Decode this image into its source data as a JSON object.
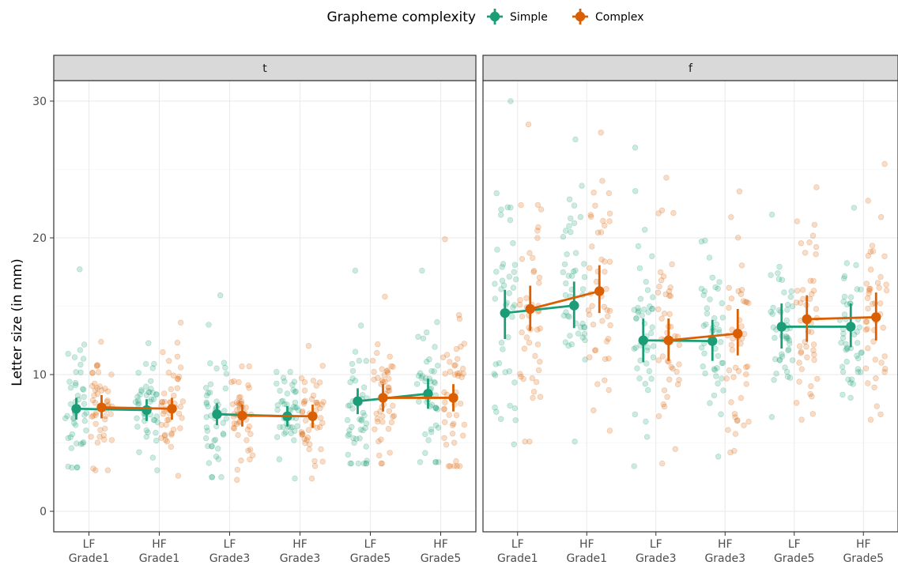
{
  "chart_data": {
    "type": "scatter",
    "ylabel": "Letter size (in mm)",
    "ylim": [
      -1.5,
      31.5
    ],
    "yticks": [
      0,
      10,
      20,
      30
    ],
    "x_categories": [
      {
        "top": "LF",
        "bottom": "Grade1"
      },
      {
        "top": "HF",
        "bottom": "Grade1"
      },
      {
        "top": "LF",
        "bottom": "Grade3"
      },
      {
        "top": "HF",
        "bottom": "Grade3"
      },
      {
        "top": "LF",
        "bottom": "Grade5"
      },
      {
        "top": "HF",
        "bottom": "Grade5"
      }
    ],
    "legend": {
      "title": "Grapheme complexity",
      "position": "top",
      "items": [
        {
          "name": "Simple",
          "color": "#1b9e77"
        },
        {
          "name": "Complex",
          "color": "#d95f02"
        }
      ]
    },
    "panels": [
      {
        "label": "t",
        "series": [
          {
            "name": "Simple",
            "color": "#1b9e77",
            "means": [
              7.5,
              7.4,
              7.1,
              6.95,
              8.05,
              8.6
            ],
            "lower": [
              6.7,
              6.6,
              6.3,
              6.2,
              7.1,
              7.5
            ],
            "upper": [
              8.3,
              8.2,
              7.9,
              7.7,
              9.0,
              9.7
            ],
            "spread": [
              [
                3.2,
                17.7
              ],
              [
                3.0,
                12.3
              ],
              [
                2.5,
                15.8
              ],
              [
                2.4,
                10.2
              ],
              [
                3.5,
                17.6
              ],
              [
                3.6,
                17.6
              ]
            ]
          },
          {
            "name": "Complex",
            "color": "#d95f02",
            "means": [
              7.6,
              7.5,
              7.0,
              6.95,
              8.3,
              8.3
            ],
            "lower": [
              6.8,
              6.7,
              6.2,
              6.1,
              7.3,
              7.3
            ],
            "upper": [
              8.5,
              8.3,
              7.8,
              7.8,
              9.3,
              9.3
            ],
            "spread": [
              [
                3.0,
                12.4
              ],
              [
                2.6,
                13.8
              ],
              [
                2.3,
                10.6
              ],
              [
                2.4,
                12.1
              ],
              [
                3.5,
                15.7
              ],
              [
                3.3,
                19.9
              ]
            ]
          }
        ]
      },
      {
        "label": "f",
        "series": [
          {
            "name": "Simple",
            "color": "#1b9e77",
            "means": [
              14.5,
              15.05,
              12.5,
              12.45,
              13.5,
              13.5
            ],
            "lower": [
              12.6,
              13.4,
              10.9,
              11.0,
              11.9,
              12.0
            ],
            "upper": [
              16.2,
              16.8,
              14.1,
              14.0,
              15.2,
              15.2
            ],
            "spread": [
              [
                4.9,
                30.0
              ],
              [
                5.1,
                27.2
              ],
              [
                3.3,
                26.6
              ],
              [
                4.0,
                19.8
              ],
              [
                6.9,
                21.7
              ],
              [
                8.3,
                22.2
              ]
            ]
          },
          {
            "name": "Complex",
            "color": "#d95f02",
            "means": [
              14.8,
              16.1,
              12.5,
              13.0,
              14.05,
              14.2
            ],
            "lower": [
              13.2,
              14.5,
              11.0,
              11.4,
              12.4,
              12.5
            ],
            "upper": [
              16.5,
              18.0,
              14.1,
              14.8,
              15.8,
              16.0
            ],
            "spread": [
              [
                5.1,
                28.3
              ],
              [
                5.9,
                27.7
              ],
              [
                3.5,
                24.4
              ],
              [
                4.3,
                23.4
              ],
              [
                6.7,
                23.7
              ],
              [
                6.7,
                25.4
              ]
            ]
          }
        ]
      }
    ]
  }
}
